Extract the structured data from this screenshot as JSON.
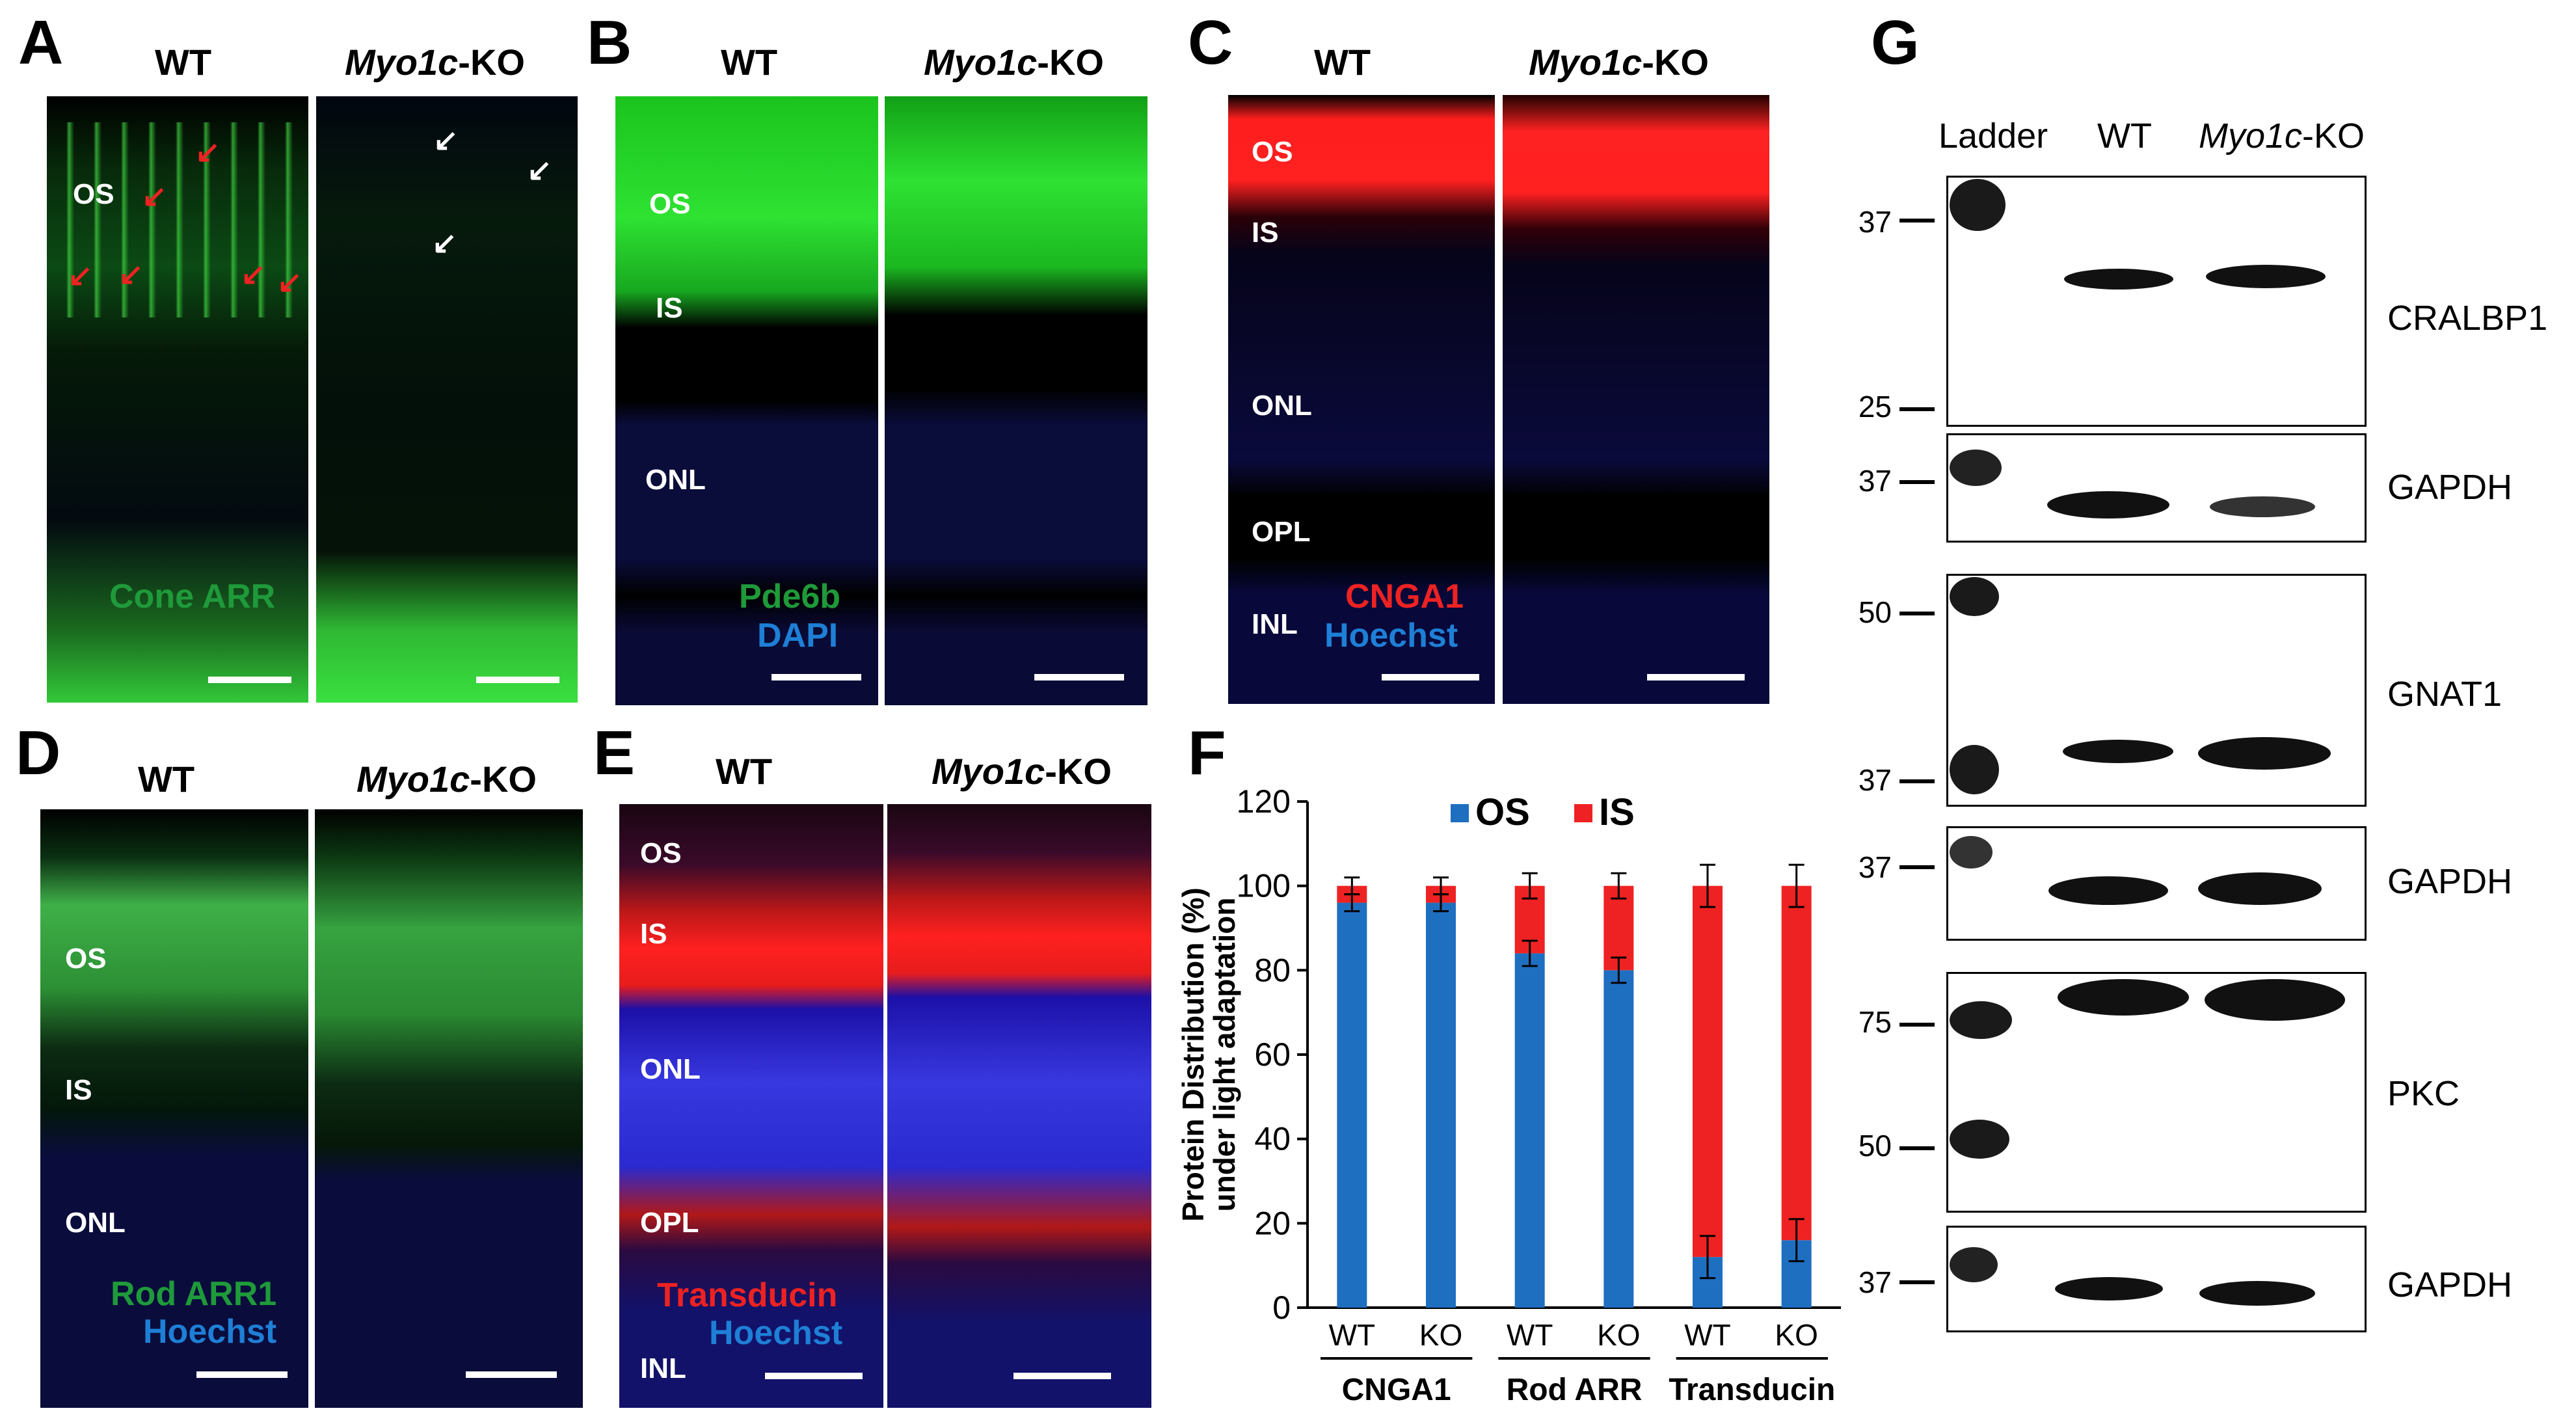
{
  "panels": {
    "A": {
      "letter": "A",
      "wt": "WT",
      "ko_gene": "Myo1c",
      "ko_suffix": "-KO",
      "layers": [
        "OS"
      ],
      "stain1": "Cone ARR"
    },
    "B": {
      "letter": "B",
      "wt": "WT",
      "ko_gene": "Myo1c",
      "ko_suffix": "-KO",
      "layers": [
        "OS",
        "IS",
        "ONL"
      ],
      "stain1": "Pde6b",
      "stain2": "DAPI"
    },
    "C": {
      "letter": "C",
      "wt": "WT",
      "ko_gene": "Myo1c",
      "ko_suffix": "-KO",
      "layers": [
        "OS",
        "IS",
        "ONL",
        "OPL",
        "INL"
      ],
      "stain1": "CNGA1",
      "stain2": "Hoechst"
    },
    "D": {
      "letter": "D",
      "wt": "WT",
      "ko_gene": "Myo1c",
      "ko_suffix": "-KO",
      "layers": [
        "OS",
        "IS",
        "ONL"
      ],
      "stain1": "Rod ARR1",
      "stain2": "Hoechst"
    },
    "E": {
      "letter": "E",
      "wt": "WT",
      "ko_gene": "Myo1c",
      "ko_suffix": "-KO",
      "layers": [
        "OS",
        "IS",
        "ONL",
        "OPL",
        "INL"
      ],
      "stain1": "Transducin",
      "stain2": "Hoechst"
    },
    "F": {
      "letter": "F"
    },
    "G": {
      "letter": "G",
      "col_ladder": "Ladder",
      "col_wt": "WT",
      "ko_gene": "Myo1c",
      "ko_suffix": "-KO"
    }
  },
  "colors": {
    "os": "#1f6fc1",
    "is": "#ee2222",
    "green_stain": "#1f9a3a",
    "blue_stain": "#1e7fd6"
  },
  "chart_data": {
    "type": "bar",
    "stacked": true,
    "ylabel_line1": "Protein Distribution (%)",
    "ylabel_line2": "under light adaptation",
    "ylim": [
      0,
      120
    ],
    "yticks": [
      "0",
      "20",
      "40",
      "60",
      "80",
      "100",
      "120"
    ],
    "categories": [
      "WT",
      "KO",
      "WT",
      "KO",
      "WT",
      "KO"
    ],
    "groups": [
      "CNGA1",
      "Rod ARR",
      "Transducin"
    ],
    "legend_position": "top",
    "series": [
      {
        "name": "OS",
        "color": "#1f6fc1",
        "values": [
          96,
          96,
          84,
          80,
          12,
          16
        ]
      },
      {
        "name": "IS",
        "color": "#ee2222",
        "values": [
          4,
          4,
          16,
          20,
          88,
          84
        ]
      }
    ],
    "errors": [
      2,
      2,
      3,
      3,
      5,
      5
    ]
  },
  "blots": [
    {
      "protein": "CRALBP1",
      "markers": [
        "37",
        "25"
      ]
    },
    {
      "protein": "GAPDH",
      "markers": [
        "37"
      ]
    },
    {
      "protein": "GNAT1",
      "markers": [
        "50",
        "37"
      ]
    },
    {
      "protein": "GAPDH",
      "markers": [
        "37"
      ]
    },
    {
      "protein": "PKC",
      "markers": [
        "75",
        "50"
      ]
    },
    {
      "protein": "GAPDH",
      "markers": [
        "37"
      ]
    }
  ]
}
